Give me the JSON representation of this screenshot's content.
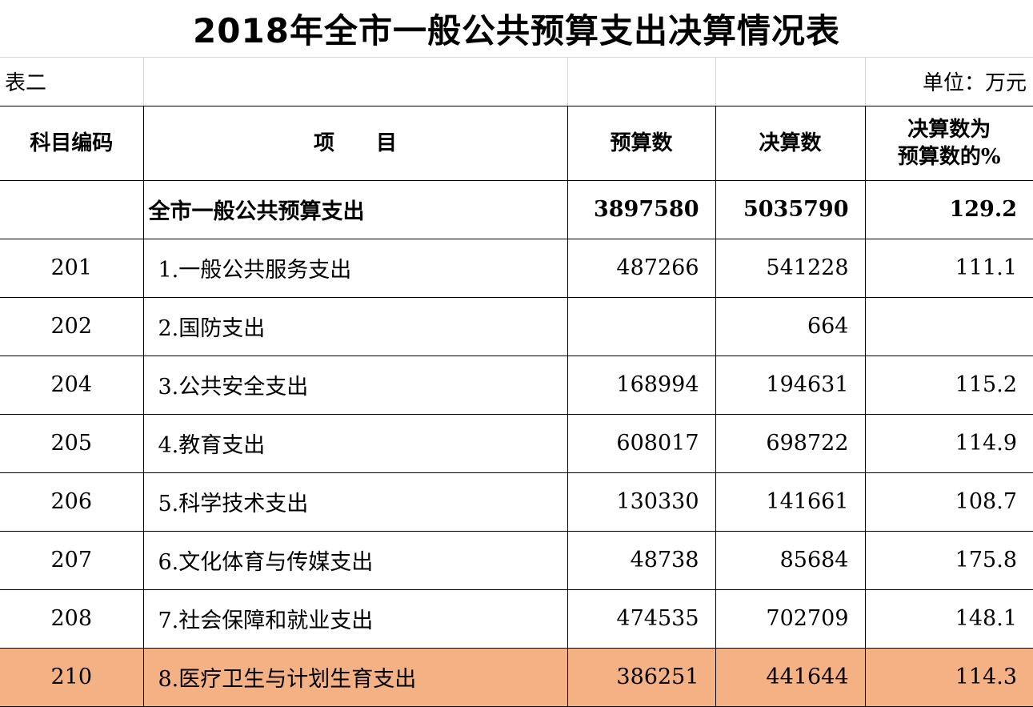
{
  "title": "2018年全市一般公共预算支出决算情况表",
  "table_no": "表二",
  "unit": "单位：万元",
  "headers": {
    "code": "科目编码",
    "item": "项　　目",
    "budget": "预算数",
    "final": "决算数",
    "ratio_line1": "决算数为",
    "ratio_line2": "预算数的%"
  },
  "total": {
    "code": "",
    "name": "全市一般公共预算支出",
    "budget": "3897580",
    "final": "5035790",
    "ratio": "129.2"
  },
  "rows": [
    {
      "code": "201",
      "name": "1.一般公共服务支出",
      "budget": "487266",
      "final": "541228",
      "ratio": "111.1"
    },
    {
      "code": "202",
      "name": "2.国防支出",
      "budget": "",
      "final": "664",
      "ratio": ""
    },
    {
      "code": "204",
      "name": "3.公共安全支出",
      "budget": "168994",
      "final": "194631",
      "ratio": "115.2"
    },
    {
      "code": "205",
      "name": "4.教育支出",
      "budget": "608017",
      "final": "698722",
      "ratio": "114.9"
    },
    {
      "code": "206",
      "name": "5.科学技术支出",
      "budget": "130330",
      "final": "141661",
      "ratio": "108.7"
    },
    {
      "code": "207",
      "name": "6.文化体育与传媒支出",
      "budget": "48738",
      "final": "85684",
      "ratio": "175.8"
    },
    {
      "code": "208",
      "name": "7.社会保障和就业支出",
      "budget": "474535",
      "final": "702709",
      "ratio": "148.1"
    },
    {
      "code": "210",
      "name": "8.医疗卫生与计划生育支出",
      "budget": "386251",
      "final": "441644",
      "ratio": "114.3"
    }
  ],
  "highlight_color": "#f4b184"
}
